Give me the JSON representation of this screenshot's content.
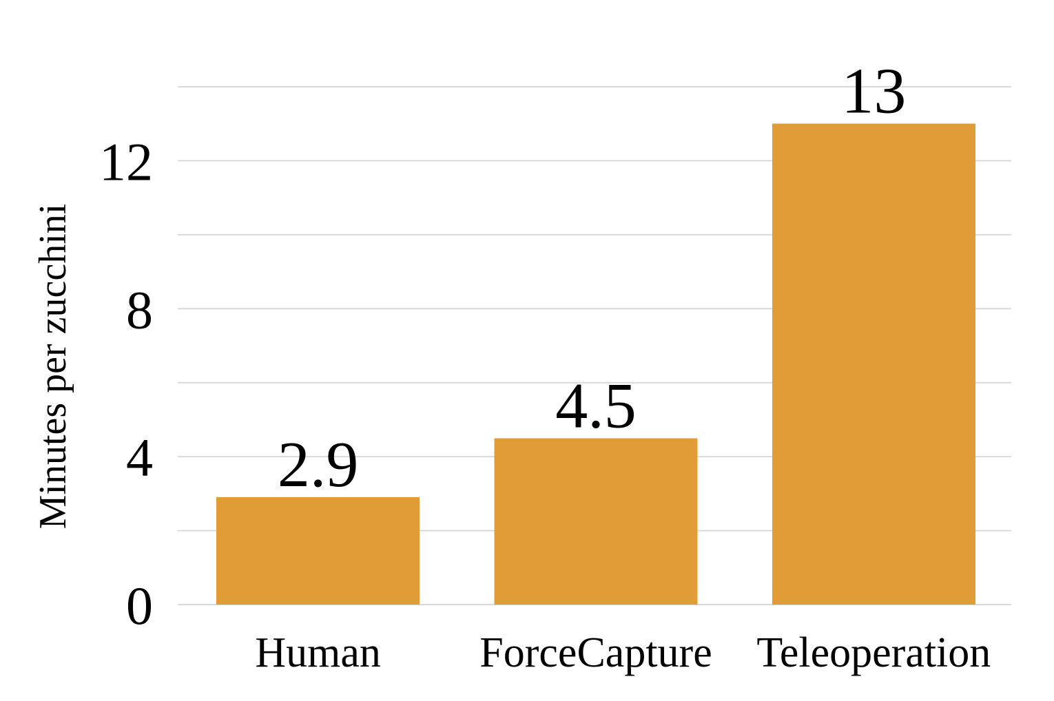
{
  "chart_data": {
    "type": "bar",
    "categories": [
      "Human",
      "ForceCapture",
      "Teleoperation"
    ],
    "series": [
      {
        "values": [
          2.9,
          4.5,
          13
        ],
        "value_labels": [
          "2.9",
          "4.5",
          "13"
        ],
        "color": "#e09d37"
      }
    ],
    "title": "",
    "xlabel": "",
    "ylabel": "Minutes per zucchini",
    "ylim": [
      0,
      14
    ],
    "yticks": [
      0,
      4,
      8,
      12
    ],
    "ytick_labels": [
      "0",
      "4",
      "8",
      "12"
    ],
    "gridlines_at": [
      0,
      2,
      4,
      6,
      8,
      10,
      12,
      14
    ],
    "grid": true,
    "grid_color": "#d9d9d9",
    "legend": "none"
  }
}
